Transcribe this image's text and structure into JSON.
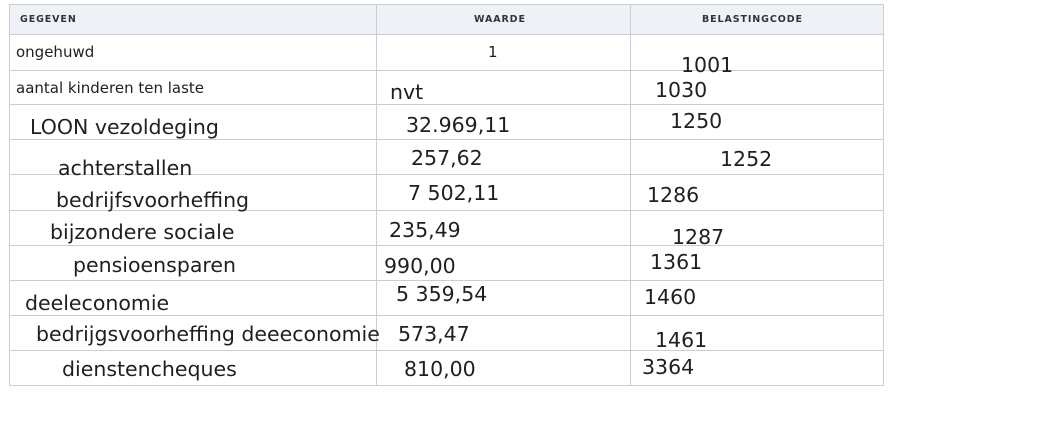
{
  "table": {
    "headers": {
      "gegeven": "GEGEVEN",
      "waarde": "WAARDE",
      "belastingcode": "BELASTINGCODE"
    },
    "rows": [
      {
        "gegeven": "ongehuwd",
        "waarde": "1",
        "code": "1001"
      },
      {
        "gegeven": "aantal kinderen ten laste",
        "waarde": "nvt",
        "code": "1030"
      },
      {
        "gegeven": "LOON vezoldeging",
        "waarde": "32.969,11",
        "code": "1250"
      },
      {
        "gegeven": "achterstallen",
        "waarde": "257,62",
        "code": "1252"
      },
      {
        "gegeven": "bedrijfsvoorheffing",
        "waarde": "7 502,11",
        "code": "1286"
      },
      {
        "gegeven": "bijzondere sociale",
        "waarde": "235,49",
        "code": "1287"
      },
      {
        "gegeven": "pensioensparen",
        "waarde": "990,00",
        "code": "1361"
      },
      {
        "gegeven": "deeleconomie",
        "waarde": "5 359,54",
        "code": "1460"
      },
      {
        "gegeven": "bedrijgsvoorheffing  deeeconomie",
        "waarde": "573,47",
        "code": "1461"
      },
      {
        "gegeven": "dienstencheques",
        "waarde": "810,00",
        "code": "3364"
      }
    ]
  }
}
